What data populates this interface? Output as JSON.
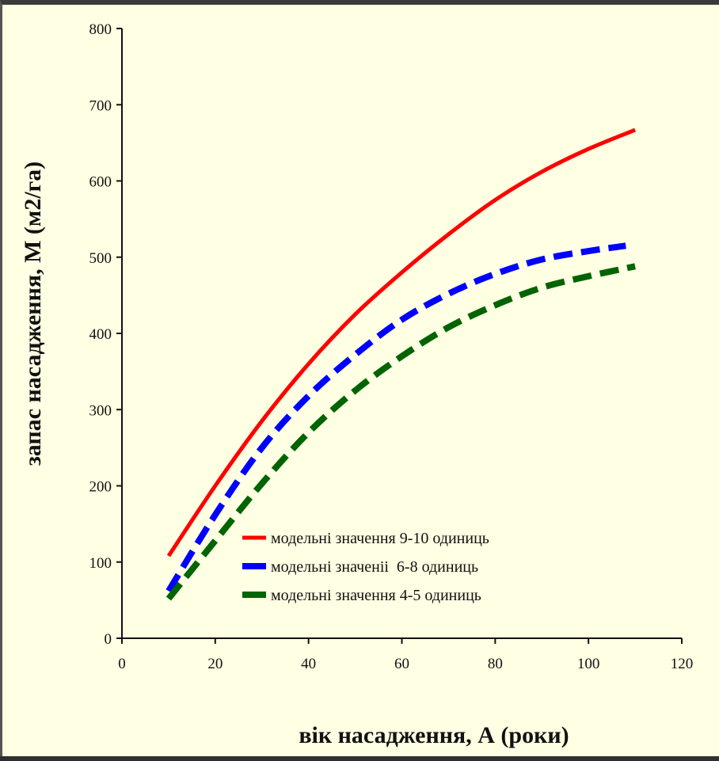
{
  "chart_data": {
    "type": "line",
    "xlabel": "вік насадження, А (роки)",
    "ylabel": "запас насадження, М (м2/га)",
    "xlim": [
      0,
      120
    ],
    "ylim": [
      0,
      800
    ],
    "xticks": [
      0,
      20,
      40,
      60,
      80,
      100,
      120
    ],
    "yticks": [
      0,
      100,
      200,
      300,
      400,
      500,
      600,
      700,
      800
    ],
    "grid": false,
    "legend_position": "bottom-center",
    "series": [
      {
        "name": "модельні значення 9-10 одиниць",
        "color": "#ff0000",
        "style": "solid",
        "x": [
          10,
          20,
          30,
          40,
          50,
          60,
          70,
          80,
          90,
          100,
          110
        ],
        "y": [
          108,
          200,
          285,
          360,
          425,
          480,
          530,
          575,
          612,
          642,
          667
        ]
      },
      {
        "name": "модельні значеніі  6-8 одиниць",
        "color": "#0000ff",
        "style": "dashed",
        "x": [
          10,
          20,
          30,
          40,
          50,
          60,
          70,
          80,
          90,
          100,
          108
        ],
        "y": [
          62,
          162,
          250,
          318,
          372,
          418,
          452,
          478,
          497,
          508,
          515
        ]
      },
      {
        "name": "модельні значення 4-5 одиниць",
        "color": "#006400",
        "style": "dashed",
        "x": [
          10,
          20,
          30,
          40,
          50,
          60,
          70,
          80,
          90,
          100,
          110
        ],
        "y": [
          52,
          128,
          203,
          270,
          325,
          370,
          408,
          437,
          460,
          475,
          488
        ]
      }
    ]
  }
}
